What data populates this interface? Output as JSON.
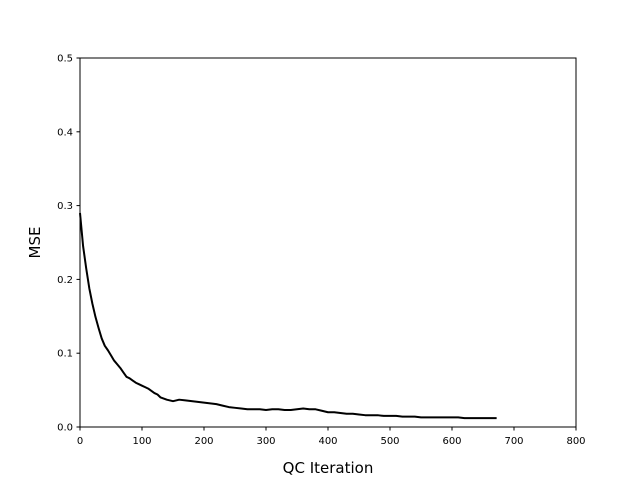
{
  "chart_data": {
    "type": "line",
    "title": "",
    "xlabel": "QC Iteration",
    "ylabel": "MSE",
    "xlim": [
      0,
      800
    ],
    "ylim": [
      0,
      0.5
    ],
    "x_ticks": [
      0,
      100,
      200,
      300,
      400,
      500,
      600,
      700,
      800
    ],
    "x_tick_labels": [
      "0",
      "100",
      "200",
      "300",
      "400",
      "500",
      "600",
      "700",
      "800"
    ],
    "y_ticks": [
      0.0,
      0.1,
      0.2,
      0.3,
      0.4,
      0.5
    ],
    "y_tick_labels": [
      "0.0",
      "0.1",
      "0.2",
      "0.3",
      "0.4",
      "0.5"
    ],
    "grid": false,
    "legend": "none",
    "line_color": "#000000",
    "series": [
      {
        "x": [
          0,
          5,
          10,
          15,
          20,
          25,
          30,
          35,
          40,
          45,
          50,
          55,
          60,
          65,
          70,
          75,
          80,
          85,
          90,
          95,
          100,
          105,
          110,
          115,
          120,
          125,
          130,
          140,
          150,
          160,
          170,
          180,
          190,
          200,
          210,
          220,
          230,
          240,
          250,
          260,
          270,
          280,
          290,
          300,
          310,
          320,
          330,
          340,
          350,
          360,
          370,
          380,
          390,
          400,
          410,
          420,
          430,
          440,
          450,
          460,
          470,
          480,
          490,
          500,
          510,
          520,
          530,
          540,
          550,
          560,
          570,
          580,
          590,
          600,
          610,
          620,
          630,
          640,
          650,
          660,
          672
        ],
        "y": [
          0.29,
          0.245,
          0.215,
          0.188,
          0.167,
          0.149,
          0.134,
          0.12,
          0.11,
          0.104,
          0.097,
          0.09,
          0.085,
          0.08,
          0.074,
          0.068,
          0.066,
          0.063,
          0.06,
          0.058,
          0.056,
          0.054,
          0.052,
          0.049,
          0.046,
          0.044,
          0.04,
          0.037,
          0.035,
          0.037,
          0.036,
          0.035,
          0.034,
          0.033,
          0.032,
          0.031,
          0.029,
          0.027,
          0.026,
          0.025,
          0.024,
          0.024,
          0.024,
          0.023,
          0.024,
          0.024,
          0.023,
          0.023,
          0.024,
          0.025,
          0.024,
          0.024,
          0.022,
          0.02,
          0.02,
          0.019,
          0.018,
          0.018,
          0.017,
          0.016,
          0.016,
          0.016,
          0.015,
          0.015,
          0.015,
          0.014,
          0.014,
          0.014,
          0.013,
          0.013,
          0.013,
          0.013,
          0.013,
          0.013,
          0.013,
          0.012,
          0.012,
          0.012,
          0.012,
          0.012,
          0.012
        ]
      }
    ]
  }
}
